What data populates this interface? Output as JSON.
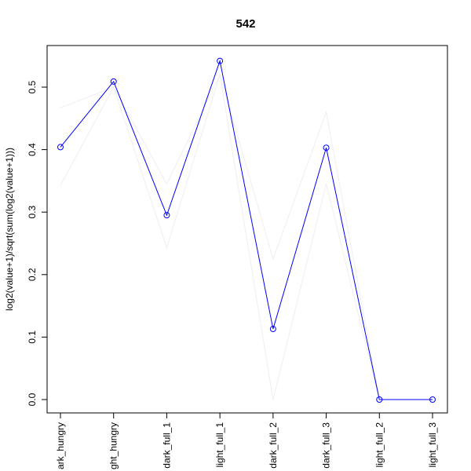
{
  "chart_data": {
    "type": "line",
    "title": "542",
    "xlabel": "",
    "ylabel": "log2(value+1)/sqrt(sum(log2(value+1)))",
    "categories": [
      "dark_hungry",
      "light_hungry",
      "dark_full_1",
      "light_full_1",
      "dark_full_2",
      "dark_full_3",
      "light_full_2",
      "light_full_3"
    ],
    "categories_visible": [
      "ark_hungry",
      "ght_hungry",
      "dark_full_1",
      "light_full_1",
      "dark_full_2",
      "dark_full_3",
      "light_full_2",
      "light_full_3"
    ],
    "ylim": [
      0.0,
      0.55
    ],
    "yticks": [
      0.0,
      0.1,
      0.2,
      0.3,
      0.4,
      0.5
    ],
    "ytick_labels": [
      "0.0",
      "0.1",
      "0.2",
      "0.3",
      "0.4",
      "0.5"
    ],
    "series": [
      {
        "values": [
          0.404,
          0.509,
          0.295,
          0.542,
          0.113,
          0.403,
          0.0,
          0.0
        ],
        "color": "#0000ff",
        "markers": true
      },
      {
        "values": [
          0.467,
          0.5,
          0.345,
          0.52,
          0.225,
          0.46,
          0.0,
          0.0
        ],
        "color": "#eeeeee",
        "markers": false
      },
      {
        "values": [
          0.343,
          0.5,
          0.243,
          0.52,
          0.0,
          0.345,
          0.0,
          0.0
        ],
        "color": "#eeeeee",
        "markers": false
      }
    ],
    "grid": false,
    "legend": "none"
  }
}
